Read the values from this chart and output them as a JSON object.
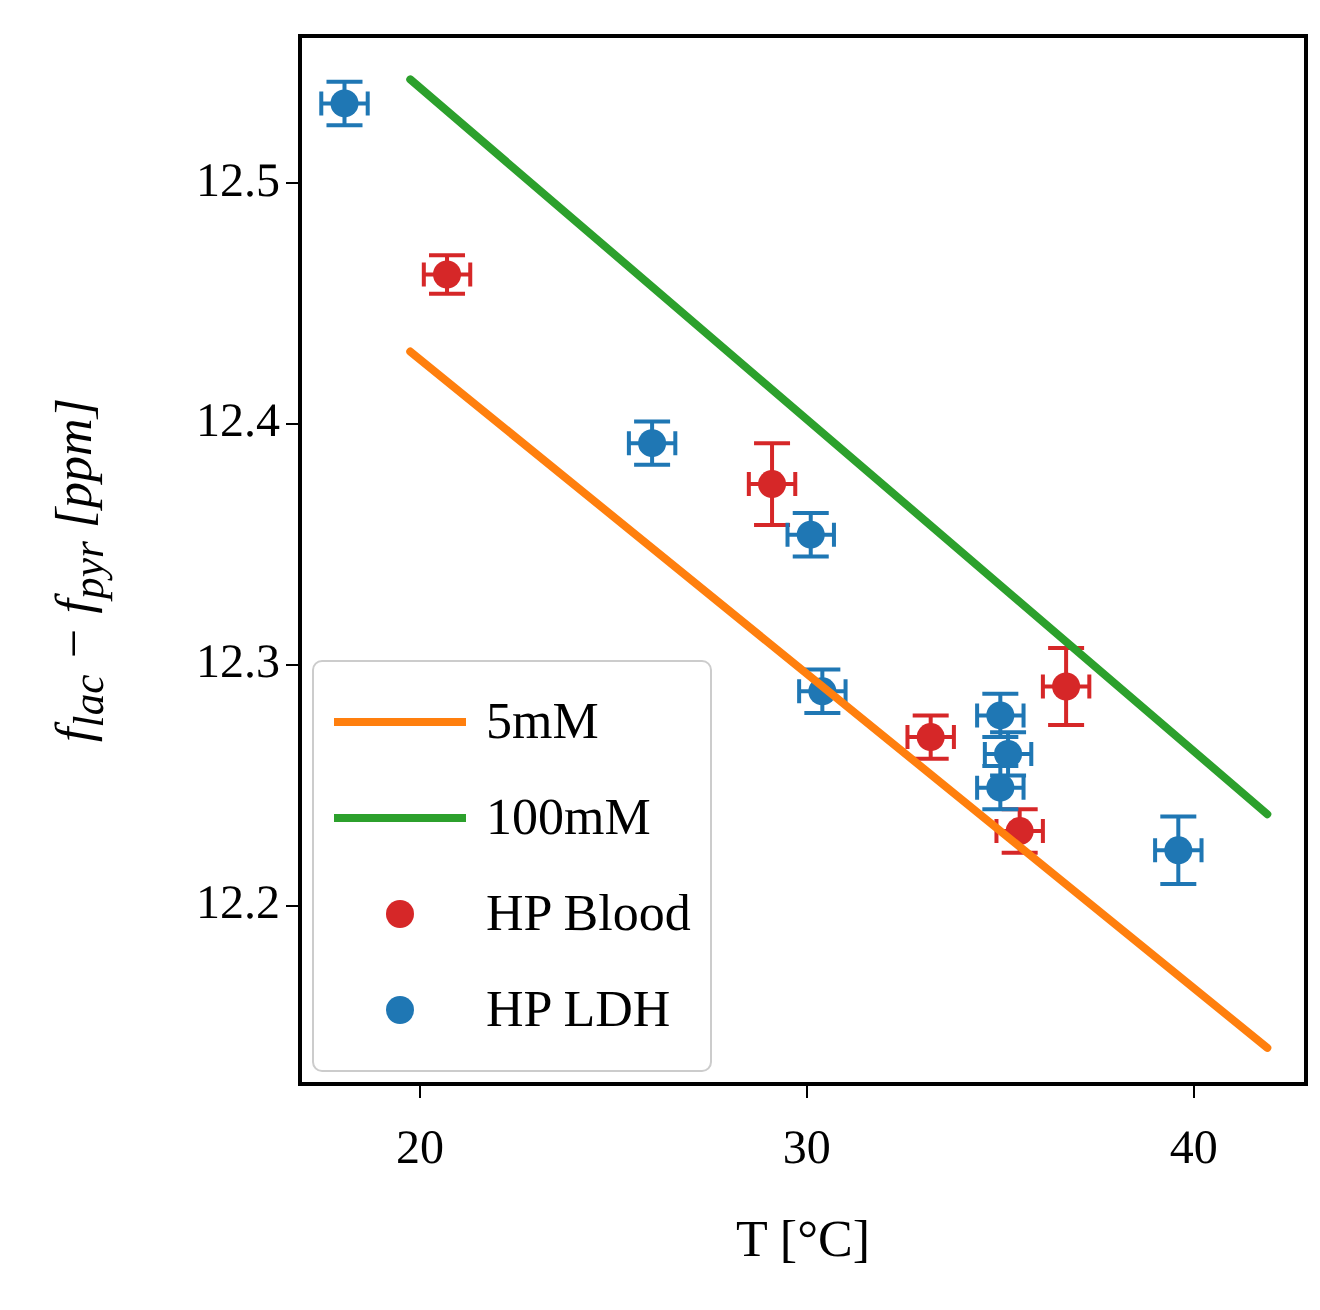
{
  "chart_data": {
    "type": "scatter",
    "xlabel": "T [°C]",
    "ylabel": "f$_{lac}$ − f$_{pyr}$ [ppm]",
    "xlim": [
      16.9,
      42.9
    ],
    "ylim": [
      12.126,
      12.561
    ],
    "xticks": [
      20,
      30,
      40
    ],
    "yticks": [
      12.2,
      12.3,
      12.4,
      12.5
    ],
    "grid": false,
    "legend": "bottom left",
    "series": [
      {
        "name": "5mM",
        "type": "line",
        "marker": "none",
        "color": "#ff7f0e",
        "x": [
          19.75,
          41.9
        ],
        "values": [
          12.43,
          12.141
        ]
      },
      {
        "name": "100mM",
        "type": "line",
        "marker": "none",
        "color": "#2ca02c",
        "x": [
          19.75,
          41.9
        ],
        "values": [
          12.543,
          12.238
        ]
      },
      {
        "name": "HP Blood",
        "marker": "circle",
        "color": "#d62728",
        "x": [
          20.7,
          29.1,
          33.2,
          35.5,
          36.7
        ],
        "values": [
          12.462,
          12.375,
          12.27,
          12.231,
          12.291
        ],
        "errors": [
          0.008,
          0.017,
          0.009,
          0.009,
          0.016
        ],
        "xerrors": [
          0.6,
          0.6,
          0.6,
          0.6,
          0.6
        ]
      },
      {
        "name": "HP LDH",
        "marker": "circle",
        "color": "#1f77b4",
        "x": [
          18.05,
          26.0,
          30.1,
          30.4,
          35.0,
          35.2,
          35.0,
          39.6
        ],
        "values": [
          12.533,
          12.392,
          12.354,
          12.289,
          12.279,
          12.263,
          12.249,
          12.223
        ],
        "errors": [
          0.009,
          0.009,
          0.009,
          0.009,
          0.009,
          0.009,
          0.009,
          0.014
        ],
        "xerrors": [
          0.6,
          0.6,
          0.6,
          0.6,
          0.6,
          0.6,
          0.6,
          0.6
        ]
      }
    ]
  }
}
